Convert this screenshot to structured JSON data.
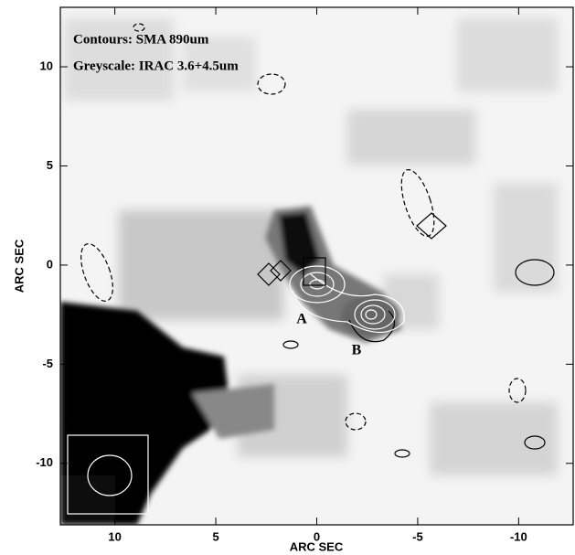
{
  "chart_data": {
    "type": "contour-image",
    "annotations": [
      "Contours: SMA 890um",
      "Greyscale: IRAC 3.6+4.5um",
      "A",
      "B"
    ],
    "xlabel": "ARC SEC",
    "ylabel": "ARC SEC",
    "xlim": [
      12.7,
      -12.7
    ],
    "ylim": [
      -13.1,
      13.0
    ],
    "xticks": [
      10,
      5,
      0,
      -5,
      -10
    ],
    "yticks": [
      -10,
      -5,
      0,
      5,
      10
    ]
  }
}
